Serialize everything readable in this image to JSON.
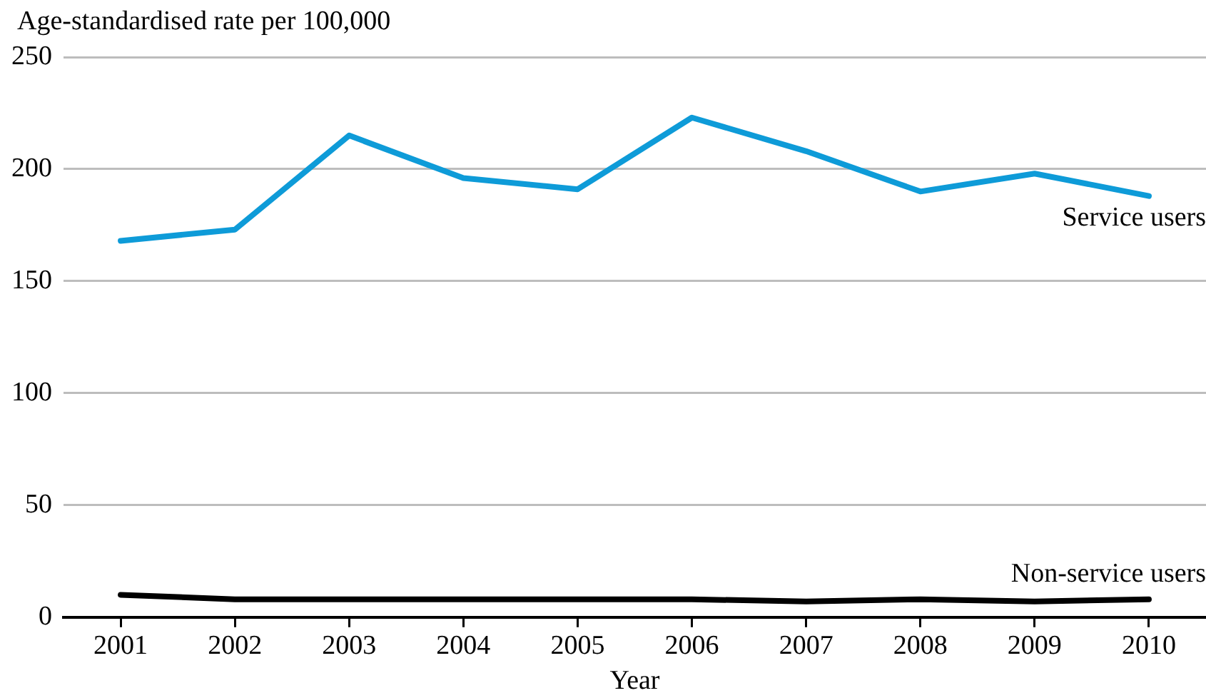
{
  "chart_data": {
    "type": "line",
    "ylabel": "Age-standardised rate per 100,000",
    "xlabel": "Year",
    "categories": [
      "2001",
      "2002",
      "2003",
      "2004",
      "2005",
      "2006",
      "2007",
      "2008",
      "2009",
      "2010"
    ],
    "series": [
      {
        "name": "Service users",
        "color": "#0e9bd8",
        "values": [
          168,
          173,
          215,
          196,
          191,
          223,
          208,
          190,
          198,
          188
        ]
      },
      {
        "name": "Non-service users",
        "color": "#000000",
        "values": [
          10,
          8,
          8,
          8,
          8,
          8,
          7,
          8,
          7,
          8
        ]
      }
    ],
    "ylim": [
      0,
      250
    ],
    "yticks": [
      0,
      50,
      100,
      150,
      200,
      250
    ],
    "grid": "y",
    "legend": false,
    "marker": "none",
    "line_style": "solid"
  }
}
